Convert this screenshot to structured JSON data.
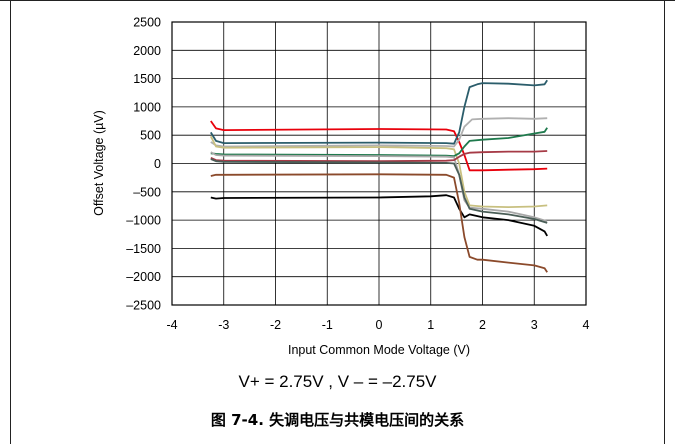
{
  "figure": {
    "condition": "V+ = 2.75V , V – = –2.75V",
    "caption": "图 7-4. 失调电压与共模电压间的关系"
  },
  "chart_data": {
    "type": "line",
    "title": "",
    "xlabel": "Input Common Mode Voltage (V)",
    "ylabel": "Offset Voltage (µV)",
    "xlim": [
      -4,
      4
    ],
    "ylim": [
      -2500,
      2500
    ],
    "xticks": [
      -4,
      -3,
      -2,
      -1,
      0,
      1,
      2,
      3,
      4
    ],
    "xtick_labels": [
      "-4",
      "-3",
      "-2",
      "-1",
      "0",
      "1",
      "2",
      "3",
      "4"
    ],
    "yticks": [
      2500,
      2000,
      1500,
      1000,
      500,
      0,
      -500,
      -1000,
      -1500,
      -2000,
      -2500
    ],
    "ytick_labels": [
      "2500",
      "2000",
      "1500",
      "1000",
      "500",
      "0",
      "–500",
      "–1000",
      "–1500",
      "–2000",
      "–2500"
    ],
    "grid": true,
    "legend": "none",
    "series": [
      {
        "color": "#e8000b",
        "x": [
          -3.25,
          -3.15,
          -3.0,
          0.0,
          1.3,
          1.45,
          1.55,
          1.65,
          1.75,
          2.0,
          2.5,
          3.0,
          3.25
        ],
        "y": [
          750,
          620,
          590,
          610,
          600,
          570,
          380,
          150,
          -120,
          -120,
          -110,
          -100,
          -90
        ]
      },
      {
        "color": "#2b5d6b",
        "x": [
          -3.25,
          -3.15,
          -3.0,
          0.0,
          1.3,
          1.45,
          1.55,
          1.65,
          1.75,
          1.9,
          2.0,
          2.5,
          3.0,
          3.2,
          3.25
        ],
        "y": [
          550,
          400,
          360,
          370,
          360,
          350,
          550,
          1000,
          1350,
          1400,
          1420,
          1410,
          1380,
          1400,
          1470
        ]
      },
      {
        "color": "#b0b0b0",
        "x": [
          -3.25,
          -3.15,
          -3.0,
          0.0,
          1.3,
          1.45,
          1.55,
          1.65,
          1.8,
          2.0,
          2.5,
          3.0,
          3.25
        ],
        "y": [
          380,
          320,
          300,
          320,
          310,
          300,
          420,
          650,
          780,
          790,
          800,
          790,
          800
        ]
      },
      {
        "color": "#c8c080",
        "x": [
          -3.25,
          -3.15,
          -3.0,
          0.0,
          1.3,
          1.45,
          1.55,
          1.65,
          1.75,
          2.0,
          2.5,
          3.0,
          3.25
        ],
        "y": [
          480,
          300,
          280,
          290,
          270,
          250,
          0,
          -500,
          -740,
          -760,
          -770,
          -760,
          -740
        ]
      },
      {
        "color": "#1f7a4d",
        "x": [
          -3.25,
          -3.15,
          -3.0,
          0.0,
          1.3,
          1.45,
          1.55,
          1.65,
          1.75,
          2.0,
          2.5,
          3.0,
          3.2,
          3.25
        ],
        "y": [
          180,
          170,
          160,
          150,
          140,
          130,
          180,
          300,
          400,
          420,
          450,
          530,
          560,
          630
        ]
      },
      {
        "color": "#a8a8a8",
        "x": [
          -3.25,
          -3.15,
          -3.0,
          0.0,
          1.3,
          1.45,
          1.55,
          1.65,
          1.75,
          2.0,
          2.5,
          3.0,
          3.25
        ],
        "y": [
          200,
          150,
          140,
          130,
          120,
          110,
          -200,
          -650,
          -780,
          -800,
          -850,
          -950,
          -1020
        ]
      },
      {
        "color": "#a63a46",
        "x": [
          -3.25,
          -3.15,
          -3.0,
          0.0,
          1.3,
          1.45,
          1.55,
          1.65,
          1.75,
          2.0,
          2.5,
          3.0,
          3.25
        ],
        "y": [
          100,
          60,
          50,
          40,
          50,
          60,
          120,
          170,
          190,
          200,
          210,
          210,
          220
        ]
      },
      {
        "color": "#4a5e57",
        "x": [
          -3.25,
          -3.15,
          -3.0,
          0.0,
          1.3,
          1.45,
          1.55,
          1.65,
          1.75,
          2.0,
          2.5,
          3.0,
          3.25
        ],
        "y": [
          80,
          40,
          30,
          20,
          10,
          0,
          -200,
          -600,
          -800,
          -850,
          -900,
          -980,
          -1050
        ]
      },
      {
        "color": "#000000",
        "x": [
          -3.25,
          -3.15,
          -3.0,
          0.0,
          1.0,
          1.3,
          1.45,
          1.55,
          1.65,
          1.75,
          2.0,
          2.5,
          3.0,
          3.2,
          3.25
        ],
        "y": [
          -600,
          -620,
          -610,
          -600,
          -580,
          -560,
          -600,
          -800,
          -950,
          -900,
          -950,
          -1000,
          -1100,
          -1200,
          -1280
        ]
      },
      {
        "color": "#8b4a2b",
        "x": [
          -3.25,
          -3.15,
          -3.0,
          0.0,
          1.3,
          1.45,
          1.55,
          1.65,
          1.75,
          1.9,
          2.0,
          2.5,
          3.0,
          3.2,
          3.25
        ],
        "y": [
          -220,
          -200,
          -200,
          -190,
          -200,
          -250,
          -700,
          -1300,
          -1650,
          -1700,
          -1700,
          -1750,
          -1800,
          -1850,
          -1920
        ]
      }
    ]
  }
}
